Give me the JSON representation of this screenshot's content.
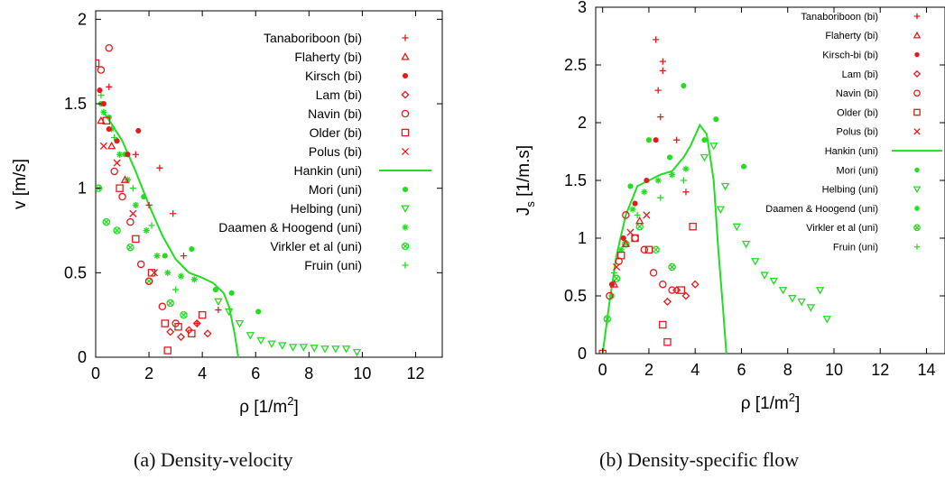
{
  "captions": [
    "(a)  Density-velocity",
    "(b)  Density-specific flow"
  ],
  "colors": {
    "bi": "#e41a1c",
    "uni": "#22dd22",
    "axis": "#000000"
  },
  "chart_data": [
    {
      "type": "scatter",
      "title": "",
      "xlabel": {
        "main": "ρ  [1/m",
        "sup": "2",
        "tail": "]"
      },
      "ylabel": {
        "main": "v  [m/s]",
        "sub": ""
      },
      "xlim": [
        0,
        13
      ],
      "ylim": [
        0,
        2.05
      ],
      "xticks": [
        0,
        2,
        4,
        6,
        8,
        10,
        12
      ],
      "yticks": [
        0,
        0.5,
        1,
        1.5,
        2
      ],
      "grid": false,
      "legend_position": "top-right",
      "legend": [
        {
          "name": "Tanaboriboon (bi)",
          "color": "bi",
          "marker": "plus"
        },
        {
          "name": "Flaherty (bi)",
          "color": "bi",
          "marker": "triangle"
        },
        {
          "name": "Kirsch (bi)",
          "color": "bi",
          "marker": "dot"
        },
        {
          "name": "Lam (bi)",
          "color": "bi",
          "marker": "diamond"
        },
        {
          "name": "Navin (bi)",
          "color": "bi",
          "marker": "circle"
        },
        {
          "name": "Older (bi)",
          "color": "bi",
          "marker": "square"
        },
        {
          "name": "Polus (bi)",
          "color": "bi",
          "marker": "cross"
        },
        {
          "name": "Hankin (uni)",
          "color": "uni",
          "marker": "line"
        },
        {
          "name": "Mori (uni)",
          "color": "uni",
          "marker": "dot"
        },
        {
          "name": "Helbing (uni)",
          "color": "uni",
          "marker": "triangle-down"
        },
        {
          "name": "Daamen & Hoogend (uni)",
          "color": "uni",
          "marker": "star"
        },
        {
          "name": "Virkler et al (uni)",
          "color": "uni",
          "marker": "circle-x"
        },
        {
          "name": "Fruin (uni)",
          "color": "uni",
          "marker": "plus"
        }
      ],
      "series": [
        {
          "name": "Hankin (uni)",
          "style": "line",
          "color": "uni",
          "x": [
            0.3,
            0.6,
            1.0,
            1.5,
            2.0,
            2.5,
            3.0,
            3.5,
            4.0,
            4.4,
            4.8,
            5.0,
            5.2,
            5.35
          ],
          "y": [
            1.45,
            1.38,
            1.28,
            1.1,
            0.9,
            0.72,
            0.58,
            0.5,
            0.47,
            0.44,
            0.38,
            0.3,
            0.15,
            0.0
          ]
        },
        {
          "name": "Helbing (uni)",
          "style": "points",
          "color": "uni",
          "marker": "triangle-down",
          "x": [
            5.4,
            5.8,
            6.2,
            6.6,
            7.0,
            7.4,
            7.8,
            8.2,
            8.6,
            9.0,
            9.4,
            9.8,
            4.6,
            5.0
          ],
          "y": [
            0.2,
            0.13,
            0.1,
            0.08,
            0.07,
            0.06,
            0.06,
            0.055,
            0.05,
            0.05,
            0.05,
            0.03,
            0.33,
            0.27
          ]
        },
        {
          "name": "Mori (uni)",
          "style": "points",
          "color": "uni",
          "marker": "dot",
          "x": [
            0.2,
            0.5,
            1.1,
            1.8,
            2.6,
            3.6,
            4.5,
            5.1,
            6.1
          ],
          "y": [
            1.5,
            1.42,
            1.2,
            0.95,
            0.6,
            0.64,
            0.4,
            0.38,
            0.27
          ]
        },
        {
          "name": "Daamen & Hoogend (uni)",
          "style": "points",
          "color": "uni",
          "marker": "star",
          "x": [
            0.3,
            0.6,
            0.9,
            1.2,
            1.5,
            1.9,
            2.3,
            2.7,
            3.2,
            3.7
          ],
          "y": [
            1.45,
            1.35,
            1.2,
            1.05,
            0.9,
            0.75,
            0.6,
            0.5,
            0.48,
            0.46
          ]
        },
        {
          "name": "Virkler et al (uni)",
          "style": "points",
          "color": "uni",
          "marker": "circle-x",
          "x": [
            0.1,
            0.4,
            0.8,
            1.3,
            2.0,
            2.8,
            3.3
          ],
          "y": [
            1.0,
            0.8,
            0.75,
            0.65,
            0.45,
            0.32,
            0.25
          ]
        },
        {
          "name": "Fruin (uni)",
          "style": "points",
          "color": "uni",
          "marker": "plus",
          "x": [
            0.2,
            0.7,
            1.4,
            2.1,
            3.0
          ],
          "y": [
            1.55,
            1.3,
            1.0,
            0.78,
            0.4
          ]
        },
        {
          "name": "Kirsch (bi)",
          "style": "points",
          "color": "bi",
          "marker": "dot",
          "x": [
            0.15,
            0.3,
            0.5,
            0.8,
            1.2,
            1.6
          ],
          "y": [
            1.58,
            1.5,
            1.35,
            1.28,
            1.2,
            1.34
          ]
        },
        {
          "name": "Navin (bi)",
          "style": "points",
          "color": "bi",
          "marker": "circle",
          "x": [
            0.2,
            0.5,
            0.7,
            1.0,
            1.3,
            1.7,
            2.0,
            2.5,
            3.0
          ],
          "y": [
            1.7,
            1.83,
            1.1,
            0.95,
            0.8,
            0.55,
            0.45,
            0.3,
            0.2
          ]
        },
        {
          "name": "Older (bi)",
          "style": "points",
          "color": "bi",
          "marker": "square",
          "x": [
            0.0,
            0.4,
            0.9,
            1.5,
            2.1,
            2.6,
            2.7,
            3.1,
            3.6,
            4.0
          ],
          "y": [
            1.74,
            1.4,
            1.0,
            0.7,
            0.5,
            0.2,
            0.04,
            0.18,
            0.14,
            0.25
          ]
        },
        {
          "name": "Lam (bi)",
          "style": "points",
          "color": "bi",
          "marker": "diamond",
          "x": [
            2.8,
            3.2,
            3.5,
            3.8,
            4.2
          ],
          "y": [
            0.15,
            0.12,
            0.16,
            0.2,
            0.14
          ]
        },
        {
          "name": "Tanaboriboon (bi)",
          "style": "points",
          "color": "bi",
          "marker": "plus",
          "x": [
            0.5,
            1.5,
            2.0,
            2.4,
            2.9,
            3.3,
            3.8,
            4.6
          ],
          "y": [
            1.6,
            1.2,
            0.9,
            1.12,
            0.85,
            0.6,
            0.2,
            0.28
          ]
        },
        {
          "name": "Polus (bi)",
          "style": "points",
          "color": "bi",
          "marker": "cross",
          "x": [
            0.3,
            0.8,
            1.4,
            2.2
          ],
          "y": [
            1.25,
            1.15,
            0.85,
            0.5
          ]
        },
        {
          "name": "Flaherty (bi)",
          "style": "points",
          "color": "bi",
          "marker": "triangle",
          "x": [
            0.2,
            0.6,
            1.1
          ],
          "y": [
            1.4,
            1.25,
            1.05
          ]
        }
      ]
    },
    {
      "type": "scatter",
      "title": "",
      "xlabel": {
        "main": "ρ  [1/m",
        "sup": "2",
        "tail": "]"
      },
      "ylabel": {
        "main": "J",
        "sub": "s",
        "tail": "  [1/m.s]"
      },
      "xlim": [
        -0.3,
        14.8
      ],
      "ylim": [
        0,
        3
      ],
      "xticks": [
        0,
        2,
        4,
        6,
        8,
        10,
        12,
        14
      ],
      "yticks": [
        0,
        0.5,
        1,
        1.5,
        2,
        2.5,
        3
      ],
      "grid": false,
      "legend_position": "top-right",
      "legend": [
        {
          "name": "Tanaboriboon (bi)",
          "color": "bi",
          "marker": "plus"
        },
        {
          "name": "Flaherty (bi)",
          "color": "bi",
          "marker": "triangle"
        },
        {
          "name": "Kirsch-bi (bi)",
          "color": "bi",
          "marker": "dot"
        },
        {
          "name": "Lam (bi)",
          "color": "bi",
          "marker": "diamond"
        },
        {
          "name": "Navin (bi)",
          "color": "bi",
          "marker": "circle"
        },
        {
          "name": "Older (bi)",
          "color": "bi",
          "marker": "square"
        },
        {
          "name": "Polus (bi)",
          "color": "bi",
          "marker": "cross"
        },
        {
          "name": "Hankin (uni)",
          "color": "uni",
          "marker": "line"
        },
        {
          "name": "Mori (uni)",
          "color": "uni",
          "marker": "dot"
        },
        {
          "name": "Helbing (uni)",
          "color": "uni",
          "marker": "triangle-down"
        },
        {
          "name": "Daamen & Hoogend (uni)",
          "color": "uni",
          "marker": "star"
        },
        {
          "name": "Virkler et al (uni)",
          "color": "uni",
          "marker": "circle-x"
        },
        {
          "name": "Fruin (uni)",
          "color": "uni",
          "marker": "plus"
        }
      ],
      "series": [
        {
          "name": "Hankin (uni)",
          "style": "line",
          "color": "uni",
          "x": [
            0.0,
            0.3,
            0.6,
            1.0,
            1.5,
            2.0,
            2.5,
            3.0,
            3.5,
            3.8,
            4.2,
            4.5,
            4.8,
            5.0,
            5.2,
            5.35
          ],
          "y": [
            0.0,
            0.45,
            0.85,
            1.2,
            1.45,
            1.5,
            1.55,
            1.58,
            1.7,
            1.8,
            1.98,
            1.9,
            1.5,
            0.9,
            0.4,
            0.0
          ]
        },
        {
          "name": "Helbing (uni)",
          "style": "points",
          "color": "uni",
          "marker": "triangle-down",
          "x": [
            4.8,
            5.3,
            5.8,
            6.2,
            6.6,
            7.0,
            7.4,
            7.8,
            8.2,
            8.6,
            9.0,
            9.4,
            9.7,
            5.1,
            4.4
          ],
          "y": [
            1.8,
            1.45,
            1.1,
            0.95,
            0.8,
            0.68,
            0.63,
            0.55,
            0.48,
            0.45,
            0.4,
            0.55,
            0.3,
            1.25,
            1.7
          ]
        },
        {
          "name": "Mori (uni)",
          "style": "points",
          "color": "uni",
          "marker": "dot",
          "x": [
            1.2,
            2.0,
            2.9,
            3.5,
            4.4,
            4.9,
            6.1
          ],
          "y": [
            1.45,
            1.85,
            1.7,
            2.32,
            1.85,
            2.03,
            1.62
          ]
        },
        {
          "name": "Daamen & Hoogend (uni)",
          "style": "points",
          "color": "uni",
          "marker": "star",
          "x": [
            0.4,
            0.8,
            1.3,
            1.8,
            2.4,
            3.0,
            3.6
          ],
          "y": [
            0.5,
            0.9,
            1.25,
            1.4,
            1.5,
            1.55,
            1.6
          ]
        },
        {
          "name": "Virkler et al (uni)",
          "style": "points",
          "color": "uni",
          "marker": "circle-x",
          "x": [
            0.2,
            0.6,
            1.0,
            1.6,
            2.3,
            3.0
          ],
          "y": [
            0.3,
            0.65,
            0.95,
            1.1,
            0.9,
            0.75
          ]
        },
        {
          "name": "Fruin (uni)",
          "style": "points",
          "color": "uni",
          "marker": "plus",
          "x": [
            0.5,
            1.5,
            2.5,
            3.5
          ],
          "y": [
            0.7,
            1.2,
            1.35,
            1.5
          ]
        },
        {
          "name": "Tanaboriboon (bi)",
          "style": "points",
          "color": "bi",
          "marker": "plus",
          "x": [
            2.3,
            2.6,
            2.6,
            2.4,
            2.5,
            3.2,
            3.6
          ],
          "y": [
            2.72,
            2.53,
            2.45,
            2.28,
            2.05,
            1.85,
            1.4
          ]
        },
        {
          "name": "Kirsch-bi (bi)",
          "style": "points",
          "color": "bi",
          "marker": "dot",
          "x": [
            0.4,
            0.9,
            1.4,
            1.9,
            2.3
          ],
          "y": [
            0.6,
            1.0,
            1.3,
            1.5,
            1.85
          ]
        },
        {
          "name": "Navin (bi)",
          "style": "points",
          "color": "bi",
          "marker": "circle",
          "x": [
            0.3,
            0.7,
            1.0,
            1.4,
            1.8,
            2.2,
            2.6,
            3.0
          ],
          "y": [
            0.5,
            0.8,
            1.2,
            1.0,
            0.9,
            0.7,
            0.6,
            0.55
          ]
        },
        {
          "name": "Older (bi)",
          "style": "points",
          "color": "bi",
          "marker": "square",
          "x": [
            0.0,
            0.8,
            1.4,
            2.0,
            2.6,
            2.8,
            3.4,
            3.9
          ],
          "y": [
            0.0,
            0.85,
            1.0,
            0.9,
            0.25,
            0.1,
            0.55,
            1.1
          ]
        },
        {
          "name": "Lam (bi)",
          "style": "points",
          "color": "bi",
          "marker": "diamond",
          "x": [
            2.8,
            3.2,
            3.6,
            4.0
          ],
          "y": [
            0.45,
            0.55,
            0.5,
            0.6
          ]
        },
        {
          "name": "Polus (bi)",
          "style": "points",
          "color": "bi",
          "marker": "cross",
          "x": [
            0.6,
            1.2,
            1.9
          ],
          "y": [
            0.75,
            1.05,
            1.2
          ]
        },
        {
          "name": "Flaherty (bi)",
          "style": "points",
          "color": "bi",
          "marker": "triangle",
          "x": [
            0.5,
            1.0,
            1.6
          ],
          "y": [
            0.6,
            0.95,
            1.15
          ]
        }
      ]
    }
  ]
}
